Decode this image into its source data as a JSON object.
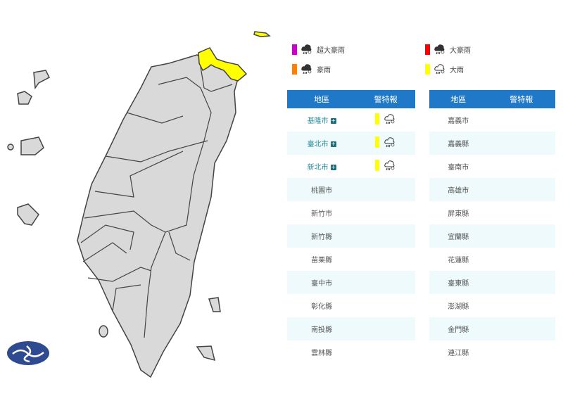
{
  "legend": [
    {
      "label": "超大豪雨",
      "color": "#cc00cc",
      "icon": "heavy-cloud-rain-icon"
    },
    {
      "label": "大豪雨",
      "color": "#ff0000",
      "icon": "heavy-cloud-rain-icon"
    },
    {
      "label": "豪雨",
      "color": "#ff8000",
      "icon": "heavy-cloud-rain-icon"
    },
    {
      "label": "大雨",
      "color": "#ffff00",
      "icon": "cloud-rain-outline-icon"
    }
  ],
  "table_left": {
    "headers": [
      "地區",
      "警特報"
    ],
    "rows": [
      {
        "area": "基隆市",
        "warning": "大雨",
        "expandable": true
      },
      {
        "area": "臺北市",
        "warning": "大雨",
        "expandable": true
      },
      {
        "area": "新北市",
        "warning": "大雨",
        "expandable": true
      },
      {
        "area": "桃園市"
      },
      {
        "area": "新竹市"
      },
      {
        "area": "新竹縣"
      },
      {
        "area": "苗栗縣"
      },
      {
        "area": "臺中市"
      },
      {
        "area": "彰化縣"
      },
      {
        "area": "南投縣"
      },
      {
        "area": "雲林縣"
      }
    ]
  },
  "table_right": {
    "headers": [
      "地區",
      "警特報"
    ],
    "rows": [
      {
        "area": "嘉義市"
      },
      {
        "area": "嘉義縣"
      },
      {
        "area": "臺南市"
      },
      {
        "area": "高雄市"
      },
      {
        "area": "屏東縣"
      },
      {
        "area": "宜蘭縣"
      },
      {
        "area": "花蓮縣"
      },
      {
        "area": "臺東縣"
      },
      {
        "area": "澎湖縣"
      },
      {
        "area": "金門縣"
      },
      {
        "area": "連江縣"
      }
    ]
  },
  "map": {
    "warned_color": "#ffff00",
    "land_color": "#d9d9d9",
    "warned_regions": [
      "基隆市",
      "臺北市",
      "新北市"
    ]
  },
  "plus_symbol": "+"
}
